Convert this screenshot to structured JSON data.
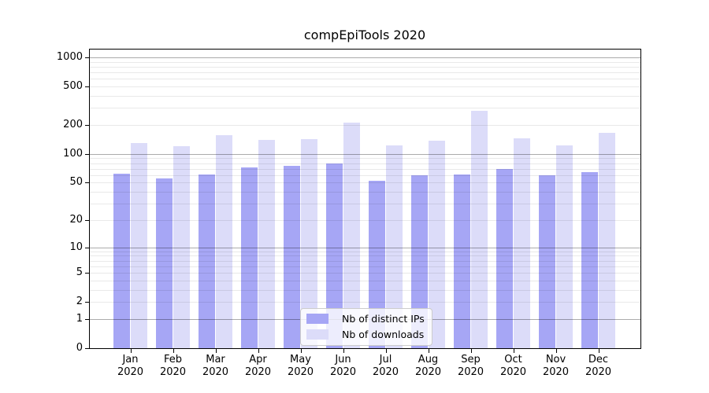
{
  "chart_data": {
    "type": "bar",
    "title": "compEpiTools 2020",
    "categories": [
      "Jan",
      "Feb",
      "Mar",
      "Apr",
      "May",
      "Jun",
      "Jul",
      "Aug",
      "Sep",
      "Oct",
      "Nov",
      "Dec"
    ],
    "category_year": "2020",
    "series": [
      {
        "name": "Nb of distinct IPs",
        "color": "#a6a6f5",
        "values": [
          62,
          55,
          61,
          72,
          75,
          80,
          52,
          60,
          61,
          70,
          60,
          65
        ]
      },
      {
        "name": "Nb of downloads",
        "color": "#dcdcf9",
        "values": [
          130,
          121,
          156,
          141,
          143,
          210,
          123,
          137,
          280,
          146,
          123,
          165
        ]
      }
    ],
    "yscale": "log1p",
    "ylim": [
      0,
      1230
    ],
    "yticks": [
      0,
      1,
      2,
      5,
      10,
      20,
      50,
      100,
      200,
      500,
      1000
    ],
    "grid": {
      "shown": true,
      "drawn_over_bars": true,
      "major_values": [
        1,
        10,
        100,
        1000
      ]
    },
    "legend_position": "lower center",
    "xlabel": "",
    "ylabel": ""
  },
  "colors": {
    "plot_background": "#ffffff",
    "axis_line": "#000000",
    "text": "#000000",
    "legend_border": "#cccccc"
  }
}
